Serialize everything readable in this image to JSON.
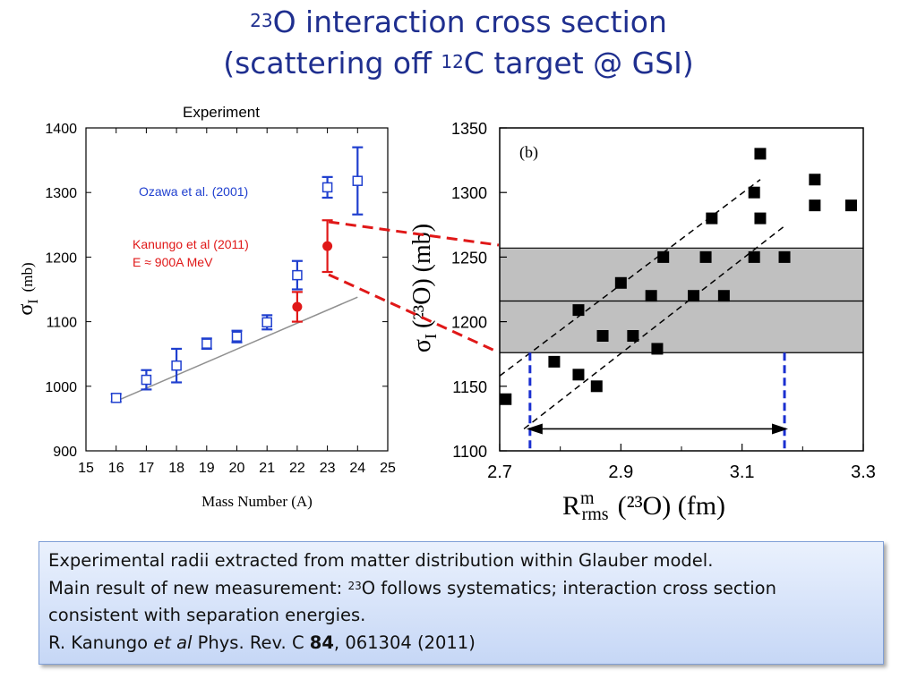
{
  "title": {
    "line1_sup": "23",
    "line1_text": "O interaction cross section",
    "line2_pre": "(scattering off ",
    "line2_sup": "12",
    "line2_post": "C target @ GSI)"
  },
  "colors": {
    "title": "#1f2f8f",
    "ozawa": "#1f3fcf",
    "kanungo": "#e01818",
    "band": "#c0c0c0",
    "fit": "#909090"
  },
  "chart_data": [
    {
      "type": "scatter",
      "label": "Experiment",
      "xlabel": "Mass Number (A)",
      "ylabel_symbol": "σ",
      "ylabel_sub": "I",
      "ylabel_unit": "(mb)",
      "xlim": [
        15,
        25
      ],
      "ylim": [
        900,
        1400
      ],
      "x_ticks": [
        "15",
        "16",
        "17",
        "18",
        "19",
        "20",
        "21",
        "22",
        "23",
        "24",
        "25"
      ],
      "y_ticks": [
        "900",
        "1000",
        "1100",
        "1200",
        "1300",
        "1400"
      ],
      "series": [
        {
          "name": "Ozawa et al. (2001)",
          "marker": "open-square",
          "points": [
            {
              "x": 16,
              "y": 982,
              "err": 6
            },
            {
              "x": 17,
              "y": 1010,
              "err": 15
            },
            {
              "x": 18,
              "y": 1032,
              "err": 26
            },
            {
              "x": 19,
              "y": 1066,
              "err": 8
            },
            {
              "x": 20,
              "y": 1077,
              "err": 9
            },
            {
              "x": 21,
              "y": 1099,
              "err": 11
            },
            {
              "x": 22,
              "y": 1172,
              "err": 22
            },
            {
              "x": 23,
              "y": 1308,
              "err": 16
            },
            {
              "x": 24,
              "y": 1318,
              "err": 52
            }
          ]
        },
        {
          "name": "Kanungo et al (2011)",
          "name_line2": "E ≈ 900A MeV",
          "marker": "filled-circle",
          "points": [
            {
              "x": 22,
              "y": 1123,
              "err": 23
            },
            {
              "x": 23,
              "y": 1217,
              "err": 40
            }
          ]
        }
      ],
      "trend_line": {
        "x": [
          16,
          24
        ],
        "y": [
          977,
          1138
        ]
      }
    },
    {
      "type": "scatter",
      "panel_label": "(b)",
      "xlabel_main": "R",
      "xlabel_sup": "m",
      "xlabel_sub": "rms",
      "xlabel_rest": "(²³O)  (fm)",
      "ylabel_symbol": "σ",
      "ylabel_sub": "I",
      "ylabel_rest": "(²³O)  (mb)",
      "xlim": [
        2.7,
        3.3
      ],
      "ylim": [
        1100,
        1350
      ],
      "x_ticks": [
        "2.7",
        "2.9",
        "3.1",
        "3.3"
      ],
      "y_ticks": [
        "1100",
        "1150",
        "1200",
        "1250",
        "1300",
        "1350"
      ],
      "band": {
        "y_low": 1176,
        "y_high": 1257,
        "y_center": 1216
      },
      "points": [
        {
          "x": 2.71,
          "y": 1140
        },
        {
          "x": 2.79,
          "y": 1169
        },
        {
          "x": 2.83,
          "y": 1209
        },
        {
          "x": 2.83,
          "y": 1159
        },
        {
          "x": 2.87,
          "y": 1189
        },
        {
          "x": 2.86,
          "y": 1150
        },
        {
          "x": 2.9,
          "y": 1230
        },
        {
          "x": 2.92,
          "y": 1189
        },
        {
          "x": 2.95,
          "y": 1220
        },
        {
          "x": 2.96,
          "y": 1179
        },
        {
          "x": 2.97,
          "y": 1250
        },
        {
          "x": 3.02,
          "y": 1220
        },
        {
          "x": 3.04,
          "y": 1250
        },
        {
          "x": 3.05,
          "y": 1280
        },
        {
          "x": 3.07,
          "y": 1220
        },
        {
          "x": 3.12,
          "y": 1250
        },
        {
          "x": 3.12,
          "y": 1300
        },
        {
          "x": 3.13,
          "y": 1330
        },
        {
          "x": 3.13,
          "y": 1280
        },
        {
          "x": 3.17,
          "y": 1250
        },
        {
          "x": 3.22,
          "y": 1310
        },
        {
          "x": 3.22,
          "y": 1290
        },
        {
          "x": 3.28,
          "y": 1290
        }
      ],
      "dashed_fit_lines": [
        {
          "x": [
            2.7,
            3.13
          ],
          "y": [
            1158,
            1310
          ]
        },
        {
          "x": [
            2.74,
            3.17
          ],
          "y": [
            1117,
            1274
          ]
        }
      ],
      "vertical_markers": [
        2.75,
        3.17
      ]
    }
  ],
  "caption": {
    "line1": "Experimental radii extracted from matter distribution within Glauber model.",
    "line2_pre": "Main result of new measurement: ",
    "line2_sup": "23",
    "line2_post": "O follows systematics; interaction cross section",
    "line3": "consistent with separation energies.",
    "ref_author": "R. Kanungo ",
    "ref_etal": "et al",
    "ref_journal": " Phys. Rev. C ",
    "ref_volume": "84",
    "ref_rest": ", 061304 (2011)"
  }
}
